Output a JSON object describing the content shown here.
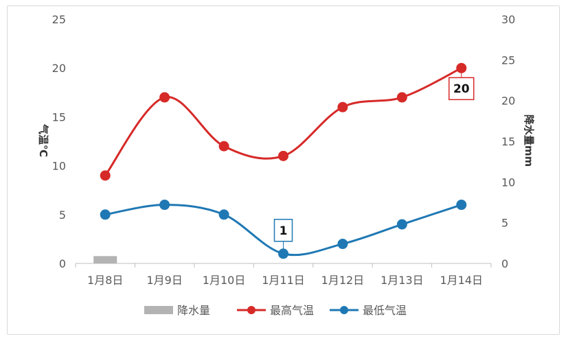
{
  "chart_data": {
    "type": "line",
    "categories": [
      "1月8日",
      "1月9日",
      "1月10日",
      "1月11日",
      "1月12日",
      "1月13日",
      "1月14日"
    ],
    "series": [
      {
        "name": "降水量",
        "kind": "bar",
        "axis": "right",
        "color": "#b3b3b3",
        "values": [
          0.9,
          0,
          0,
          0,
          0,
          0,
          0
        ]
      },
      {
        "name": "最高气温",
        "kind": "line",
        "axis": "left",
        "color": "#d62a28",
        "values": [
          9,
          17,
          12,
          11,
          16,
          17,
          20
        ]
      },
      {
        "name": "最低气温",
        "kind": "line",
        "axis": "left",
        "color": "#1f78b4",
        "values": [
          5,
          6,
          5,
          1,
          2,
          4,
          6
        ]
      }
    ],
    "ylabel": "气温℃",
    "y2label": "降水量mm",
    "ylim": [
      0,
      25
    ],
    "y2lim": [
      0,
      30
    ],
    "yticks": [
      "0",
      "5",
      "10",
      "15",
      "20",
      "25"
    ],
    "y2ticks": [
      "0",
      "5",
      "10",
      "15",
      "20",
      "25",
      "30"
    ],
    "annotations": [
      {
        "series": "最高气温",
        "category": "1月14日",
        "text": "20",
        "color": "#d62a28"
      },
      {
        "series": "最低气温",
        "category": "1月11日",
        "text": "1",
        "color": "#1f78b4"
      }
    ],
    "legend_position": "bottom",
    "grid": false
  }
}
